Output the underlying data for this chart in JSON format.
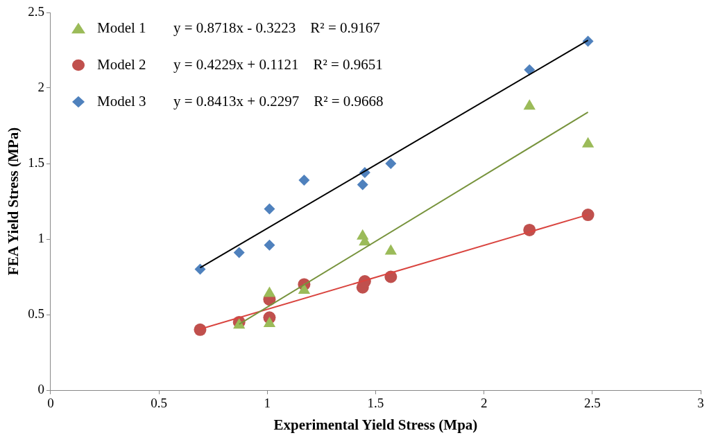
{
  "chart_data": {
    "type": "scatter",
    "xlabel": "Experimental Yield Stress (Mpa)",
    "ylabel": "FEA Yield Stress (MPa)",
    "xlim": [
      0,
      3
    ],
    "xticks": [
      0,
      0.5,
      1,
      1.5,
      2,
      2.5,
      3
    ],
    "ylim": [
      0,
      2.5
    ],
    "yticks": [
      0,
      0.5,
      1,
      1.5,
      2,
      2.5
    ],
    "grid": false,
    "legend": "top left",
    "annotations": [
      "y = 0.8718x - 0.3223    R² = 0.9167",
      "y = 0.4229x + 0.1121    R² = 0.9651",
      "y = 0.8413x + 0.2297    R² = 0.9668"
    ],
    "series": [
      {
        "name": "Model 1",
        "marker": "triangle",
        "color": "#9bbb59",
        "x": [
          0.87,
          1.01,
          1.01,
          1.17,
          1.44,
          1.45,
          1.57,
          2.21,
          2.48
        ],
        "values": [
          0.43,
          0.64,
          0.44,
          0.66,
          1.02,
          0.98,
          0.92,
          1.88,
          1.63
        ]
      },
      {
        "name": "Model 2",
        "marker": "circle",
        "color": "#c0504d",
        "x": [
          0.69,
          0.87,
          1.01,
          1.01,
          1.17,
          1.44,
          1.45,
          1.57,
          2.21,
          2.48
        ],
        "values": [
          0.4,
          0.45,
          0.6,
          0.48,
          0.7,
          0.68,
          0.72,
          0.75,
          1.06,
          1.16
        ]
      },
      {
        "name": "Model 3",
        "marker": "diamond",
        "color": "#4f81bd",
        "x": [
          0.69,
          0.87,
          1.01,
          1.01,
          1.17,
          1.44,
          1.45,
          1.57,
          2.21,
          2.48
        ],
        "values": [
          0.8,
          0.91,
          1.2,
          0.96,
          1.39,
          1.36,
          1.44,
          1.5,
          2.12,
          2.31
        ]
      },
      {
        "type": "line",
        "marker": "none",
        "color": "#77933c",
        "x": [
          0.87,
          2.48
        ],
        "values": [
          0.436,
          1.84
        ]
      },
      {
        "type": "line",
        "marker": "none",
        "color": "#d9443f",
        "x": [
          0.69,
          2.48
        ],
        "values": [
          0.404,
          1.161
        ]
      },
      {
        "type": "line",
        "marker": "none",
        "color": "#000000",
        "x": [
          0.69,
          2.48
        ],
        "values": [
          0.81,
          2.316
        ]
      }
    ]
  }
}
